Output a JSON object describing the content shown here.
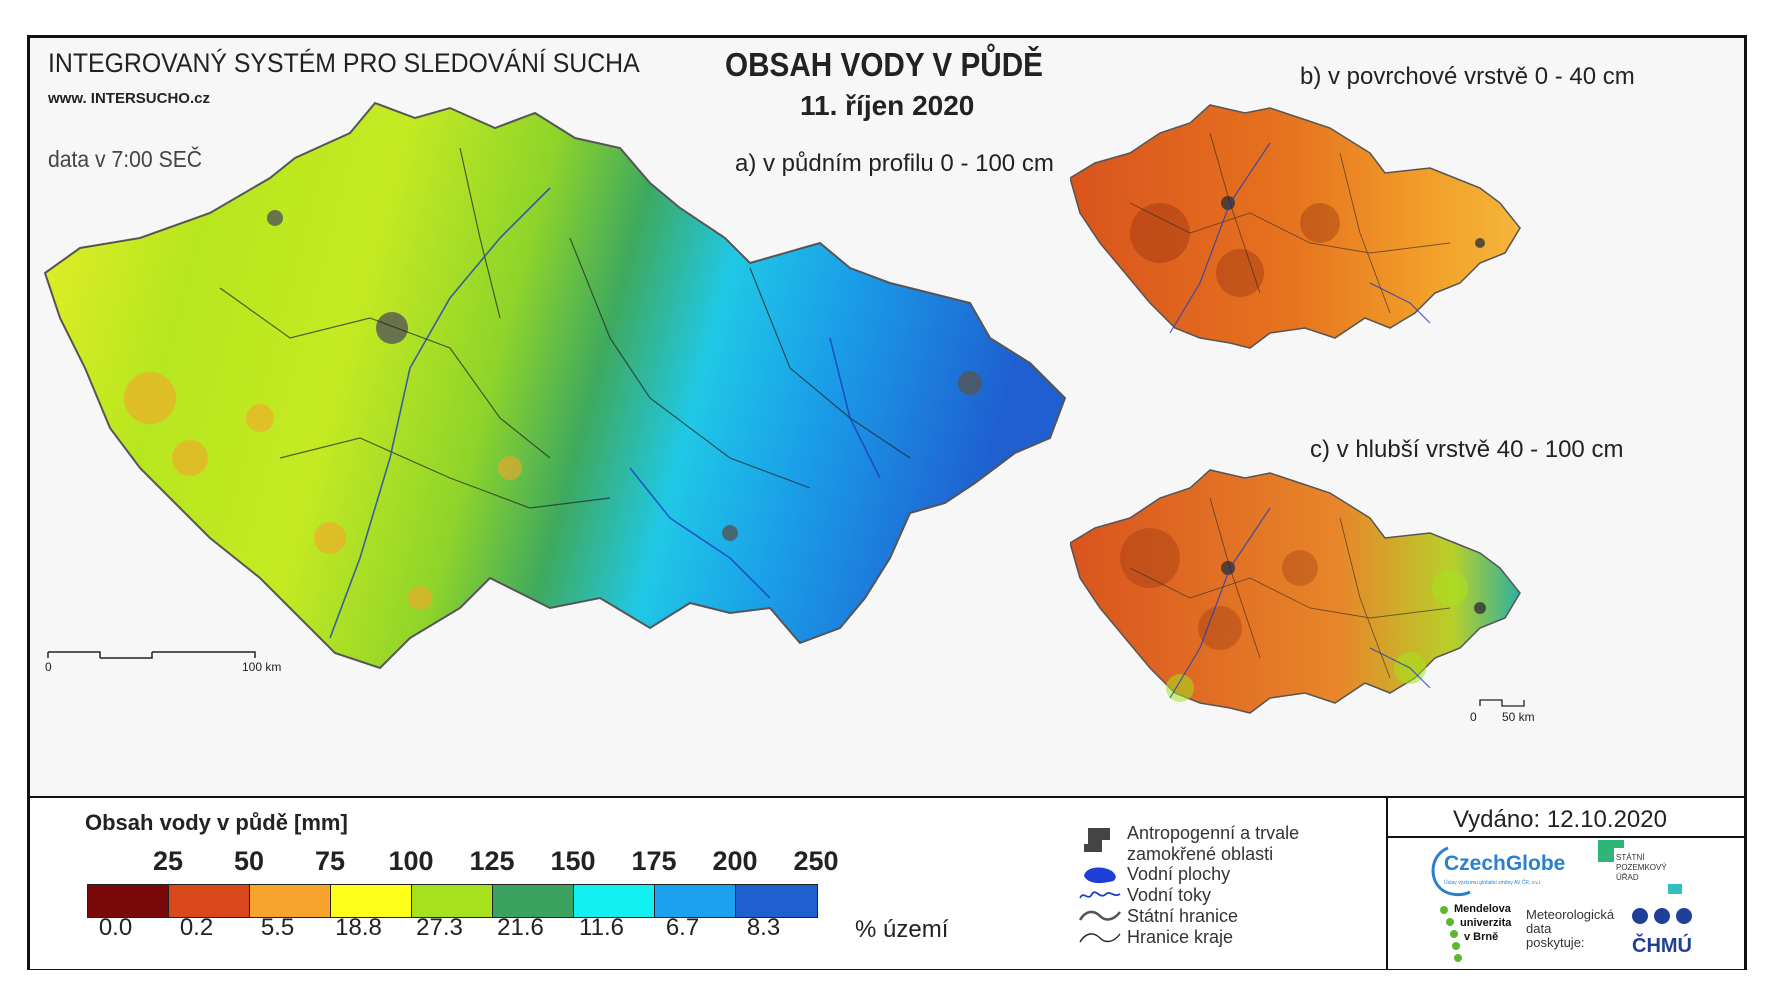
{
  "header": {
    "system_title": "INTEGROVANÝ SYSTÉM PRO SLEDOVÁNÍ SUCHA",
    "website": "www. INTERSUCHO.cz",
    "data_time": "data v 7:00 SEČ",
    "main_title": "OBSAH VODY V PŮDĚ",
    "date": "11. říjen 2020"
  },
  "maps": {
    "a_label": "a) v půdním profilu 0 - 100 cm",
    "b_label": "b) v povrchové vrstvě 0 - 40 cm",
    "c_label": "c) v hlubší vrstvě 40 - 100 cm",
    "scale_main": {
      "zero": "0",
      "end": "100 km"
    },
    "scale_small": {
      "zero": "0",
      "end": "50 km"
    }
  },
  "legend": {
    "title": "Obsah vody v půdě  [mm]",
    "thresholds": [
      "25",
      "50",
      "75",
      "100",
      "125",
      "150",
      "175",
      "200",
      "250"
    ],
    "classes": [
      {
        "color": "#7a0a0a",
        "percent": "0.0"
      },
      {
        "color": "#d9481a",
        "percent": "0.2"
      },
      {
        "color": "#f6a42c",
        "percent": "5.5"
      },
      {
        "color": "#ffff1a",
        "percent": "18.8"
      },
      {
        "color": "#a5e21d",
        "percent": "27.3"
      },
      {
        "color": "#3aa15f",
        "percent": "21.6"
      },
      {
        "color": "#12f0f2",
        "percent": "11.6"
      },
      {
        "color": "#1aa2ee",
        "percent": "6.7"
      },
      {
        "color": "#1f5fd0",
        "percent": "8.3"
      }
    ],
    "percent_label": "% území",
    "symbols": {
      "anthropogenic": "Antropogenní a trvale zamokřené oblasti",
      "water_areas": "Vodní plochy",
      "water_streams": "Vodní toky",
      "state_border": "Státní hranice",
      "region_border": "Hranice kraje"
    }
  },
  "issued": "Vydáno: 12.10.2020",
  "logos": {
    "czechglobe": "CzechGlobe",
    "czechglobe_sub": "Ústav výzkumu globální změny AV ČR, v.v.i.",
    "spu": [
      "STÁTNÍ",
      "POZEMKOVÝ",
      "ÚŘAD"
    ],
    "mendel": [
      "Mendelova",
      "univerzita",
      "v Brně"
    ],
    "meteo": [
      "Meteorologická",
      "data",
      "poskytuje:"
    ],
    "chmu": "ČHMÚ"
  }
}
